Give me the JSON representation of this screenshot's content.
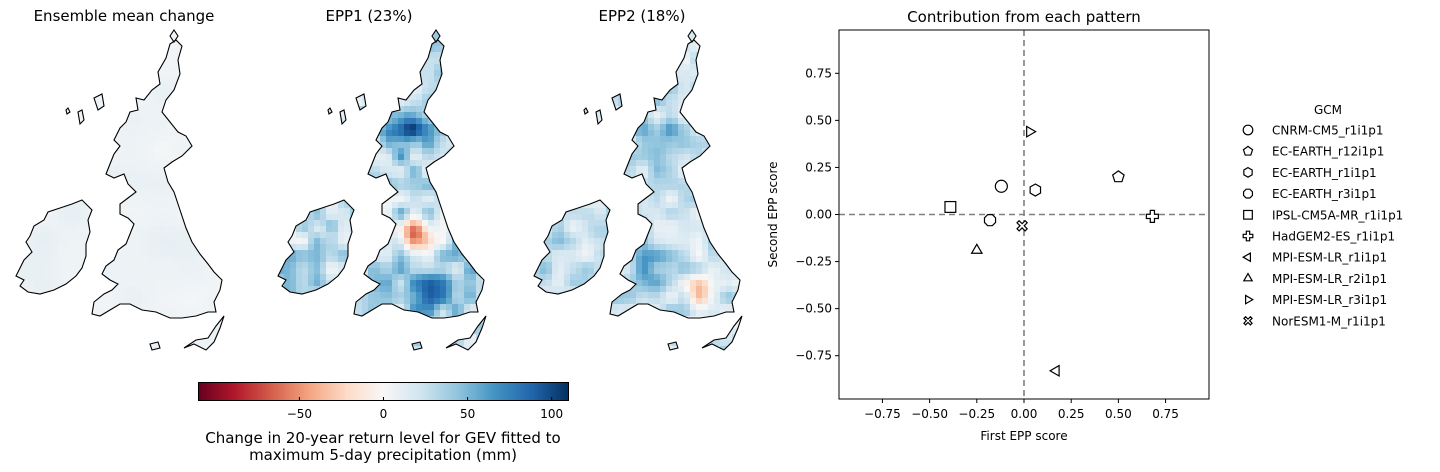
{
  "maps": [
    {
      "title": "Ensemble mean change",
      "field": "mean"
    },
    {
      "title": "EPP1 (23%)",
      "field": "epp1"
    },
    {
      "title": "EPP2 (18%)",
      "field": "epp2"
    }
  ],
  "colorbar": {
    "ticks": [
      "−50",
      "0",
      "50",
      "100"
    ],
    "tick_values": [
      -50,
      0,
      50,
      100
    ],
    "range": [
      -110,
      110
    ],
    "label_line1": "Change in 20-year return level for GEV fitted to",
    "label_line2": "maximum 5-day precipitation (mm)",
    "colormap": [
      "#67001f",
      "#b2182b",
      "#d6604d",
      "#f4a582",
      "#fddbc7",
      "#f7f7f7",
      "#d1e5f0",
      "#92c5de",
      "#4393c3",
      "#2166ac",
      "#053061"
    ]
  },
  "chart_data": {
    "type": "scatter",
    "title": "Contribution from each pattern",
    "xlabel": "First EPP score",
    "ylabel": "Second EPP score",
    "xlim": [
      -0.98,
      0.98
    ],
    "ylim": [
      -0.98,
      0.98
    ],
    "xticks": [
      -0.75,
      -0.5,
      -0.25,
      0.0,
      0.25,
      0.5,
      0.75
    ],
    "xtick_labels": [
      "−0.75",
      "−0.50",
      "−0.25",
      "0.00",
      "0.25",
      "0.50",
      "0.75"
    ],
    "yticks": [
      -0.75,
      -0.5,
      -0.25,
      0.0,
      0.25,
      0.5,
      0.75
    ],
    "ytick_labels": [
      "−0.75",
      "−0.50",
      "−0.25",
      "0.00",
      "0.25",
      "0.50",
      "0.75"
    ],
    "reference_lines": {
      "x": 0,
      "y": 0,
      "style": "dashed",
      "color": "#808080"
    },
    "legend": {
      "title": "GCM",
      "placement": "right-outside"
    },
    "series": [
      {
        "name": "CNRM-CM5_r1i1p1",
        "marker": "circle",
        "x": -0.12,
        "y": 0.15
      },
      {
        "name": "EC-EARTH_r12i1p1",
        "marker": "pentagon",
        "x": 0.5,
        "y": 0.2
      },
      {
        "name": "EC-EARTH_r1i1p1",
        "marker": "hexagon",
        "x": 0.06,
        "y": 0.13
      },
      {
        "name": "EC-EARTH_r3i1p1",
        "marker": "octagon",
        "x": -0.18,
        "y": -0.03
      },
      {
        "name": "IPSL-CM5A-MR_r1i1p1",
        "marker": "square",
        "x": -0.39,
        "y": 0.04
      },
      {
        "name": "HadGEM2-ES_r1i1p1",
        "marker": "plus",
        "x": 0.68,
        "y": -0.01
      },
      {
        "name": "MPI-ESM-LR_r1i1p1",
        "marker": "triangle-left",
        "x": 0.17,
        "y": -0.83
      },
      {
        "name": "MPI-ESM-LR_r2i1p1",
        "marker": "triangle-up",
        "x": -0.25,
        "y": -0.19
      },
      {
        "name": "MPI-ESM-LR_r3i1p1",
        "marker": "triangle-right",
        "x": 0.03,
        "y": 0.44
      },
      {
        "name": "NorESM1-M_r1i1p1",
        "marker": "x-filled",
        "x": -0.01,
        "y": -0.06
      }
    ]
  }
}
